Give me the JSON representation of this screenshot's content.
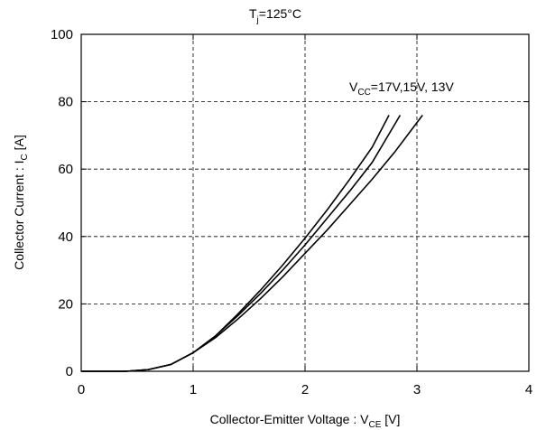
{
  "chart_data": {
    "type": "line",
    "title_main": "T",
    "title_sub": "j",
    "title_rest": "=125°C",
    "xlabel_main": "Collector-Emitter Voltage  :  V",
    "xlabel_sub": "CE",
    "xlabel_rest": "  [V]",
    "ylabel_main": "Collector Current  :  I",
    "ylabel_sub": "C",
    "ylabel_rest": "  [A]",
    "annotation_main": "V",
    "annotation_sub": "CC",
    "annotation_rest": "=17V,15V, 13V",
    "xlim": [
      0,
      4
    ],
    "ylim": [
      0,
      100
    ],
    "xticks": [
      0,
      1,
      2,
      3,
      4
    ],
    "yticks": [
      0,
      20,
      40,
      60,
      80,
      100
    ],
    "grid": true,
    "series": [
      {
        "x": [
          0,
          0.4,
          0.6,
          0.8,
          1.0,
          1.2,
          1.4,
          1.6,
          1.8,
          2.0,
          2.2,
          2.4,
          2.6,
          2.75
        ],
        "y": [
          0,
          0,
          0.5,
          2,
          5.5,
          10.5,
          17,
          24,
          31.5,
          39.5,
          48,
          57,
          66.5,
          76
        ]
      },
      {
        "x": [
          0,
          0.4,
          0.6,
          0.8,
          1.0,
          1.2,
          1.4,
          1.6,
          1.8,
          2.0,
          2.2,
          2.4,
          2.6,
          2.85
        ],
        "y": [
          0,
          0,
          0.5,
          2,
          5.5,
          10.5,
          16.5,
          23,
          30,
          37.5,
          45.5,
          53.5,
          62,
          76
        ]
      },
      {
        "x": [
          0,
          0.4,
          0.6,
          0.8,
          1.0,
          1.2,
          1.4,
          1.6,
          1.8,
          2.0,
          2.2,
          2.4,
          2.6,
          2.8,
          3.05
        ],
        "y": [
          0,
          0,
          0.5,
          2,
          5.5,
          10,
          15.5,
          21.5,
          28,
          35,
          42,
          49.5,
          57,
          65,
          76
        ]
      }
    ]
  }
}
